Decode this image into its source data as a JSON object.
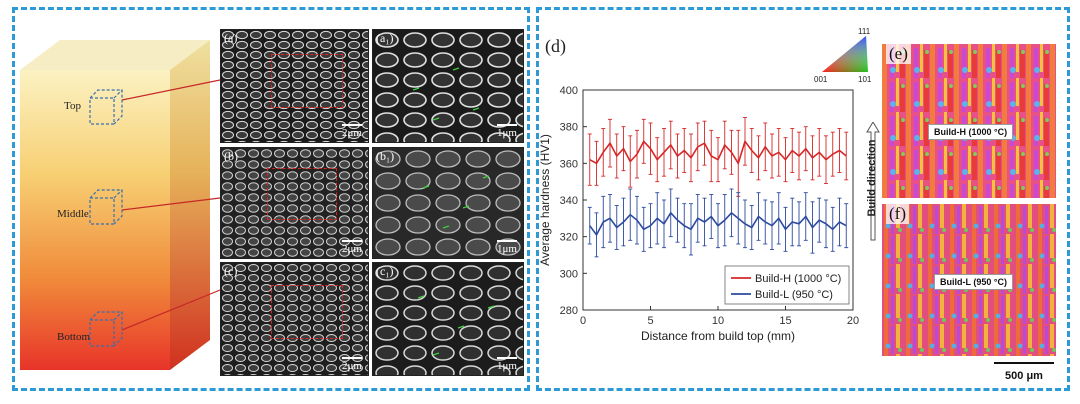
{
  "block": {
    "labels": [
      "Top",
      "Middle",
      "Bottom"
    ]
  },
  "micrographs": [
    {
      "label": "(a)",
      "scale": "2μm"
    },
    {
      "label": "(b)",
      "scale": "2μm"
    },
    {
      "label": "(c)",
      "scale": "2μm"
    },
    {
      "label": "(a₁)",
      "scale": "1μm"
    },
    {
      "label": "(b₁)",
      "scale": "1μm"
    },
    {
      "label": "(c₁)",
      "scale": "1μm"
    }
  ],
  "chart_data": {
    "type": "line",
    "panel_label": "(d)",
    "xlabel": "Distance from build top (mm)",
    "ylabel": "Average hardness (HV1)",
    "xlim": [
      0,
      20
    ],
    "ylim": [
      280,
      400
    ],
    "xticks": [
      0,
      5,
      10,
      15,
      20
    ],
    "yticks": [
      280,
      300,
      320,
      340,
      360,
      380,
      400
    ],
    "legend_position": "bottom-right",
    "series": [
      {
        "name": "Build-H (1000 °C)",
        "color": "#d62728",
        "x": [
          0.5,
          1,
          1.5,
          2,
          2.5,
          3,
          3.5,
          4,
          4.5,
          5,
          5.5,
          6,
          6.5,
          7,
          7.5,
          8,
          8.5,
          9,
          9.5,
          10,
          10.5,
          11,
          11.5,
          12,
          12.5,
          13,
          13.5,
          14,
          14.5,
          15,
          15.5,
          16,
          16.5,
          17,
          17.5,
          18,
          18.5,
          19,
          19.5
        ],
        "y": [
          362,
          360,
          366,
          371,
          364,
          368,
          361,
          365,
          372,
          368,
          362,
          366,
          370,
          364,
          367,
          363,
          369,
          371,
          364,
          362,
          370,
          366,
          360,
          372,
          367,
          363,
          369,
          364,
          366,
          362,
          367,
          364,
          368,
          363,
          366,
          362,
          365,
          367,
          364
        ],
        "err": [
          14,
          12,
          13,
          13,
          12,
          12,
          14,
          13,
          12,
          14,
          12,
          13,
          13,
          12,
          12,
          13,
          13,
          12,
          14,
          12,
          13,
          12,
          18,
          13,
          12,
          12,
          13,
          12,
          13,
          12,
          12,
          13,
          12,
          12,
          13,
          13,
          12,
          12,
          13
        ]
      },
      {
        "name": "Build-L (950 °C)",
        "color": "#2c4a9e",
        "x": [
          0.5,
          1,
          1.5,
          2,
          2.5,
          3,
          3.5,
          4,
          4.5,
          5,
          5.5,
          6,
          6.5,
          7,
          7.5,
          8,
          8.5,
          9,
          9.5,
          10,
          10.5,
          11,
          11.5,
          12,
          12.5,
          13,
          13.5,
          14,
          14.5,
          15,
          15.5,
          16,
          16.5,
          17,
          17.5,
          18,
          18.5,
          19,
          19.5
        ],
        "y": [
          326,
          321,
          328,
          330,
          325,
          328,
          332,
          329,
          324,
          326,
          330,
          327,
          333,
          329,
          326,
          324,
          330,
          328,
          331,
          326,
          329,
          333,
          330,
          327,
          325,
          331,
          328,
          326,
          330,
          324,
          328,
          327,
          331,
          325,
          329,
          327,
          324,
          328,
          326
        ],
        "err": [
          10,
          12,
          14,
          13,
          12,
          13,
          14,
          13,
          12,
          12,
          14,
          13,
          13,
          12,
          12,
          14,
          13,
          13,
          12,
          12,
          14,
          13,
          14,
          13,
          12,
          13,
          12,
          13,
          14,
          12,
          13,
          12,
          13,
          14,
          12,
          13,
          12,
          13,
          12
        ]
      }
    ]
  },
  "ipf": {
    "t111": "111",
    "t001": "001",
    "t101": "101"
  },
  "ebsd": {
    "e_label": "(e)",
    "f_label": "(f)",
    "e_tag": "Build-H (1000 °C)",
    "f_tag": "Build-L (950 °C)",
    "direction": "Build direction",
    "scale": "500 μm"
  }
}
